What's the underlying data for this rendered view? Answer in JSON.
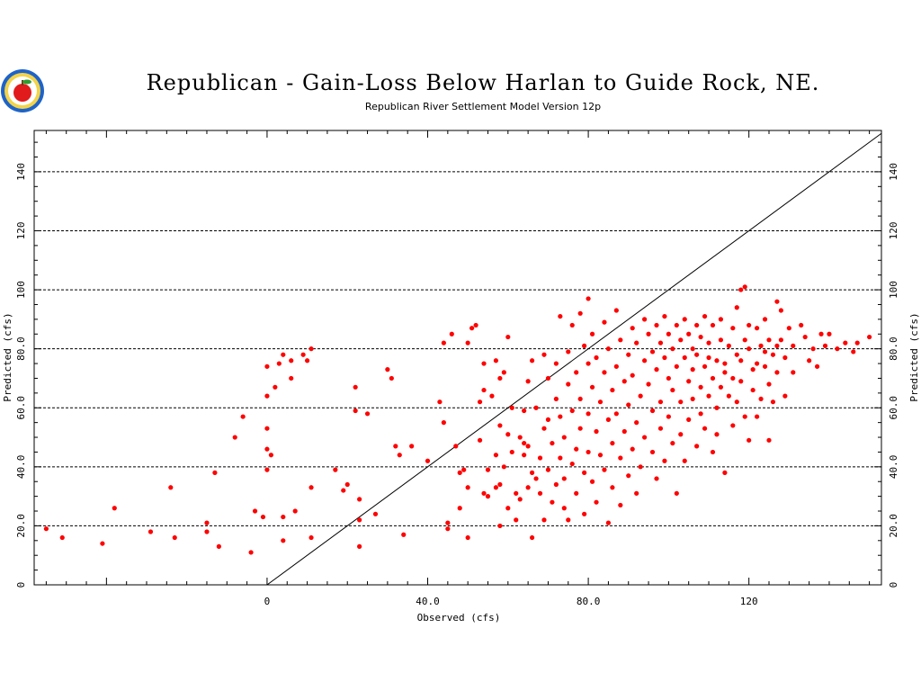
{
  "chart_data": {
    "type": "scatter",
    "title": "Republican - Gain-Loss Below Harlan to Guide Rock, NE.",
    "subtitle": "Republican River Settlement Model Version 12p",
    "xlabel": "Observed (cfs)",
    "ylabel": "Predicted (cfs)",
    "xlim": [
      -58,
      153
    ],
    "ylim": [
      0,
      154
    ],
    "x_ticks": [
      {
        "value": 0,
        "label": "0"
      },
      {
        "value": 40,
        "label": "40.0"
      },
      {
        "value": 80,
        "label": "80.0"
      },
      {
        "value": 120,
        "label": "120"
      }
    ],
    "y_ticks": [
      {
        "value": 0,
        "label": "0"
      },
      {
        "value": 20,
        "label": "20.0"
      },
      {
        "value": 40,
        "label": "40.0"
      },
      {
        "value": 60,
        "label": "60.0"
      },
      {
        "value": 80,
        "label": "80.0"
      },
      {
        "value": 100,
        "label": "100"
      },
      {
        "value": 120,
        "label": "120"
      },
      {
        "value": 140,
        "label": "140"
      }
    ],
    "grid": "horizontal dashed",
    "reference_line": {
      "type": "1:1",
      "from": [
        0,
        0
      ],
      "to": [
        153,
        153
      ]
    },
    "point_color": "#ff0000",
    "series": [
      {
        "values": [
          [
            -55,
            19
          ],
          [
            -51,
            16
          ],
          [
            -41,
            14
          ],
          [
            -38,
            26
          ],
          [
            -29,
            18
          ],
          [
            -24,
            33
          ],
          [
            -23,
            16
          ],
          [
            -15,
            21
          ],
          [
            -15,
            18
          ],
          [
            -13,
            38
          ],
          [
            -12,
            13
          ],
          [
            -8,
            50
          ],
          [
            -6,
            57
          ],
          [
            -4,
            11
          ],
          [
            -3,
            25
          ],
          [
            -1,
            23
          ],
          [
            0,
            74
          ],
          [
            0,
            64
          ],
          [
            0,
            46
          ],
          [
            0,
            53
          ],
          [
            0,
            39
          ],
          [
            1,
            44
          ],
          [
            2,
            67
          ],
          [
            3,
            75
          ],
          [
            4,
            78
          ],
          [
            4,
            23
          ],
          [
            4,
            15
          ],
          [
            6,
            70
          ],
          [
            6,
            76
          ],
          [
            7,
            25
          ],
          [
            9,
            78
          ],
          [
            10,
            76
          ],
          [
            11,
            80
          ],
          [
            11,
            33
          ],
          [
            11,
            16
          ],
          [
            17,
            39
          ],
          [
            19,
            32
          ],
          [
            20,
            34
          ],
          [
            22,
            67
          ],
          [
            22,
            59
          ],
          [
            23,
            29
          ],
          [
            23,
            22
          ],
          [
            23,
            13
          ],
          [
            25,
            58
          ],
          [
            27,
            24
          ],
          [
            30,
            73
          ],
          [
            31,
            70
          ],
          [
            32,
            47
          ],
          [
            33,
            44
          ],
          [
            34,
            17
          ],
          [
            36,
            47
          ],
          [
            40,
            42
          ],
          [
            43,
            62
          ],
          [
            44,
            55
          ],
          [
            44,
            82
          ],
          [
            45,
            21
          ],
          [
            45,
            19
          ],
          [
            46,
            85
          ],
          [
            47,
            47
          ],
          [
            48,
            26
          ],
          [
            48,
            38
          ],
          [
            49,
            39
          ],
          [
            50,
            16
          ],
          [
            50,
            33
          ],
          [
            50,
            82
          ],
          [
            51,
            87
          ],
          [
            52,
            88
          ],
          [
            53,
            62
          ],
          [
            53,
            49
          ],
          [
            54,
            31
          ],
          [
            54,
            75
          ],
          [
            54,
            66
          ],
          [
            55,
            30
          ],
          [
            55,
            39
          ],
          [
            56,
            64
          ],
          [
            57,
            44
          ],
          [
            57,
            33
          ],
          [
            57,
            76
          ],
          [
            58,
            70
          ],
          [
            58,
            54
          ],
          [
            58,
            34
          ],
          [
            58,
            20
          ],
          [
            59,
            40
          ],
          [
            59,
            72
          ],
          [
            60,
            26
          ],
          [
            60,
            51
          ],
          [
            60,
            84
          ],
          [
            61,
            45
          ],
          [
            61,
            60
          ],
          [
            62,
            31
          ],
          [
            62,
            22
          ],
          [
            63,
            29
          ],
          [
            63,
            50
          ],
          [
            64,
            59
          ],
          [
            64,
            44
          ],
          [
            64,
            48
          ],
          [
            65,
            33
          ],
          [
            65,
            47
          ],
          [
            65,
            69
          ],
          [
            66,
            38
          ],
          [
            66,
            76
          ],
          [
            66,
            16
          ],
          [
            67,
            60
          ],
          [
            67,
            36
          ],
          [
            68,
            31
          ],
          [
            68,
            43
          ],
          [
            69,
            22
          ],
          [
            69,
            53
          ],
          [
            69,
            78
          ],
          [
            70,
            39
          ],
          [
            70,
            56
          ],
          [
            70,
            70
          ],
          [
            71,
            28
          ],
          [
            71,
            48
          ],
          [
            72,
            34
          ],
          [
            72,
            63
          ],
          [
            72,
            75
          ],
          [
            73,
            91
          ],
          [
            73,
            43
          ],
          [
            73,
            57
          ],
          [
            74,
            26
          ],
          [
            74,
            36
          ],
          [
            74,
            50
          ],
          [
            75,
            79
          ],
          [
            75,
            68
          ],
          [
            75,
            22
          ],
          [
            76,
            59
          ],
          [
            76,
            41
          ],
          [
            76,
            88
          ],
          [
            77,
            72
          ],
          [
            77,
            46
          ],
          [
            77,
            31
          ],
          [
            78,
            92
          ],
          [
            78,
            63
          ],
          [
            78,
            53
          ],
          [
            79,
            81
          ],
          [
            79,
            38
          ],
          [
            79,
            24
          ],
          [
            80,
            75
          ],
          [
            80,
            58
          ],
          [
            80,
            45
          ],
          [
            80,
            97
          ],
          [
            81,
            67
          ],
          [
            81,
            35
          ],
          [
            81,
            85
          ],
          [
            82,
            52
          ],
          [
            82,
            77
          ],
          [
            82,
            28
          ],
          [
            83,
            62
          ],
          [
            83,
            44
          ],
          [
            84,
            89
          ],
          [
            84,
            72
          ],
          [
            84,
            39
          ],
          [
            85,
            56
          ],
          [
            85,
            21
          ],
          [
            85,
            80
          ],
          [
            86,
            66
          ],
          [
            86,
            48
          ],
          [
            86,
            33
          ],
          [
            87,
            93
          ],
          [
            87,
            74
          ],
          [
            87,
            58
          ],
          [
            88,
            43
          ],
          [
            88,
            83
          ],
          [
            88,
            27
          ],
          [
            89,
            69
          ],
          [
            89,
            52
          ],
          [
            90,
            37
          ],
          [
            90,
            78
          ],
          [
            90,
            61
          ],
          [
            91,
            87
          ],
          [
            91,
            46
          ],
          [
            91,
            71
          ],
          [
            92,
            55
          ],
          [
            92,
            31
          ],
          [
            92,
            82
          ],
          [
            93,
            64
          ],
          [
            93,
            40
          ],
          [
            94,
            76
          ],
          [
            94,
            90
          ],
          [
            94,
            50
          ],
          [
            95,
            68
          ],
          [
            95,
            85
          ],
          [
            96,
            59
          ],
          [
            96,
            45
          ],
          [
            96,
            79
          ],
          [
            97,
            73
          ],
          [
            97,
            88
          ],
          [
            97,
            36
          ],
          [
            98,
            82
          ],
          [
            98,
            62
          ],
          [
            98,
            53
          ],
          [
            99,
            77
          ],
          [
            99,
            91
          ],
          [
            99,
            42
          ],
          [
            100,
            70
          ],
          [
            100,
            85
          ],
          [
            100,
            57
          ],
          [
            101,
            80
          ],
          [
            101,
            66
          ],
          [
            101,
            48
          ],
          [
            102,
            88
          ],
          [
            102,
            74
          ],
          [
            102,
            31
          ],
          [
            103,
            83
          ],
          [
            103,
            62
          ],
          [
            103,
            51
          ],
          [
            104,
            90
          ],
          [
            104,
            77
          ],
          [
            104,
            42
          ],
          [
            105,
            69
          ],
          [
            105,
            85
          ],
          [
            105,
            56
          ],
          [
            106,
            80
          ],
          [
            106,
            73
          ],
          [
            106,
            63
          ],
          [
            107,
            88
          ],
          [
            107,
            47
          ],
          [
            107,
            78
          ],
          [
            108,
            67
          ],
          [
            108,
            84
          ],
          [
            108,
            58
          ],
          [
            109,
            91
          ],
          [
            109,
            74
          ],
          [
            109,
            53
          ],
          [
            110,
            82
          ],
          [
            110,
            64
          ],
          [
            110,
            77
          ],
          [
            111,
            88
          ],
          [
            111,
            70
          ],
          [
            111,
            45
          ],
          [
            112,
            76
          ],
          [
            112,
            60
          ],
          [
            112,
            51
          ],
          [
            113,
            83
          ],
          [
            113,
            90
          ],
          [
            113,
            67
          ],
          [
            114,
            75
          ],
          [
            114,
            38
          ],
          [
            114,
            72
          ],
          [
            115,
            81
          ],
          [
            115,
            64
          ],
          [
            116,
            87
          ],
          [
            116,
            70
          ],
          [
            116,
            54
          ],
          [
            117,
            78
          ],
          [
            117,
            94
          ],
          [
            117,
            62
          ],
          [
            118,
            100
          ],
          [
            118,
            76
          ],
          [
            118,
            69
          ],
          [
            119,
            101
          ],
          [
            119,
            83
          ],
          [
            119,
            57
          ],
          [
            120,
            80
          ],
          [
            120,
            88
          ],
          [
            120,
            49
          ],
          [
            121,
            73
          ],
          [
            121,
            66
          ],
          [
            122,
            75
          ],
          [
            122,
            87
          ],
          [
            122,
            57
          ],
          [
            123,
            81
          ],
          [
            123,
            63
          ],
          [
            124,
            79
          ],
          [
            124,
            90
          ],
          [
            124,
            74
          ],
          [
            125,
            83
          ],
          [
            125,
            68
          ],
          [
            125,
            49
          ],
          [
            126,
            78
          ],
          [
            126,
            62
          ],
          [
            127,
            96
          ],
          [
            127,
            81
          ],
          [
            127,
            72
          ],
          [
            128,
            83
          ],
          [
            128,
            93
          ],
          [
            129,
            77
          ],
          [
            129,
            64
          ],
          [
            130,
            87
          ],
          [
            131,
            81
          ],
          [
            131,
            72
          ],
          [
            133,
            88
          ],
          [
            134,
            84
          ],
          [
            135,
            76
          ],
          [
            136,
            80
          ],
          [
            137,
            74
          ],
          [
            138,
            85
          ],
          [
            139,
            81
          ],
          [
            140,
            85
          ],
          [
            142,
            80
          ],
          [
            144,
            82
          ],
          [
            146,
            79
          ],
          [
            147,
            82
          ],
          [
            150,
            84
          ]
        ]
      }
    ]
  }
}
